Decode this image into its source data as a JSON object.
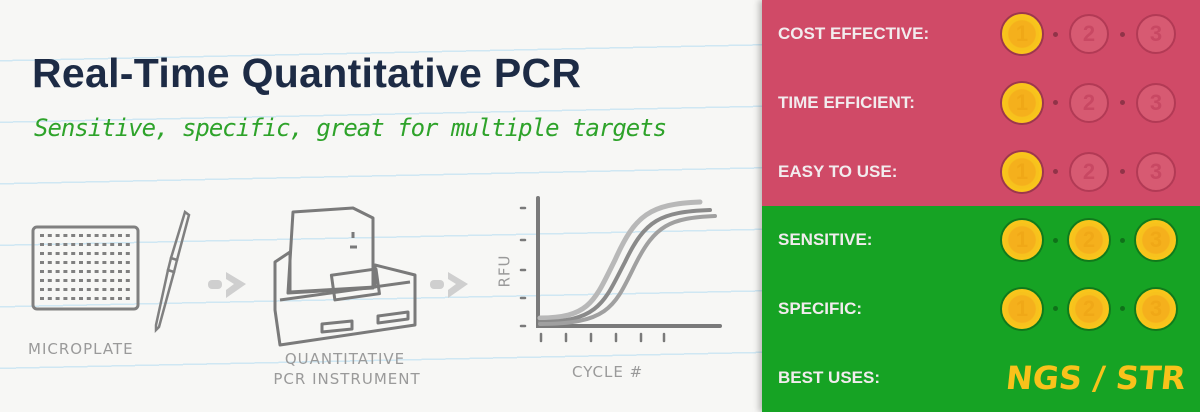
{
  "title": "Real-Time Quantitative PCR",
  "subtitle": "Sensitive, specific, great for multiple targets",
  "illustration": {
    "microplate_label": "MICROPLATE",
    "instrument_label_line1": "QUANTITATIVE",
    "instrument_label_line2": "PCR INSTRUMENT",
    "chart_y_label": "RFU",
    "chart_x_label": "CYCLE #"
  },
  "ratings": [
    {
      "label": "COST EFFECTIVE:",
      "score": 1,
      "max": 3,
      "status": "bad"
    },
    {
      "label": "TIME EFFICIENT:",
      "score": 1,
      "max": 3,
      "status": "bad"
    },
    {
      "label": "EASY TO USE:",
      "score": 1,
      "max": 3,
      "status": "bad"
    },
    {
      "label": "SENSITIVE:",
      "score": 3,
      "max": 3,
      "status": "good"
    },
    {
      "label": "SPECIFIC:",
      "score": 3,
      "max": 3,
      "status": "good"
    }
  ],
  "best_uses": {
    "label": "BEST USES:",
    "value": "NGS / STR"
  },
  "colors": {
    "bad": "#d04a67",
    "good": "#16a324",
    "coin": "#f5b01c",
    "title": "#1d2b45",
    "subtitle": "#2ea32a"
  }
}
